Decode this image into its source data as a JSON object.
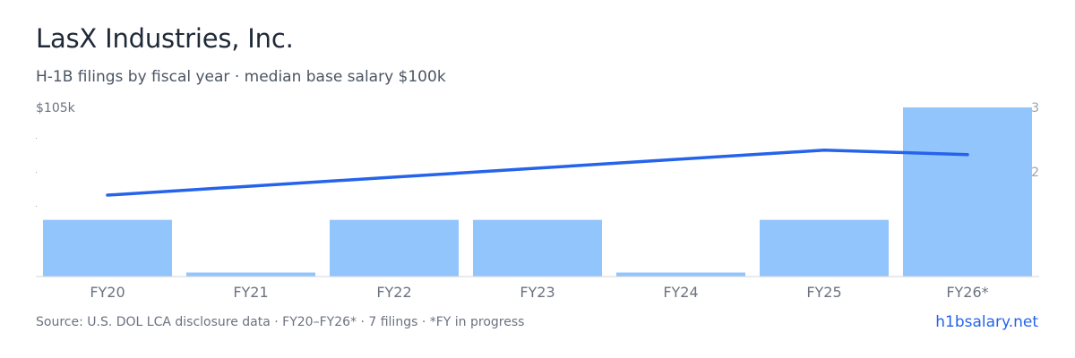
{
  "header": {
    "title": "LasX Industries, Inc.",
    "subtitle": "H-1B filings by fiscal year · median base salary $100k"
  },
  "footer": {
    "source": "Source: U.S. DOL LCA disclosure data · FY20–FY26* · 7 filings · *FY in progress",
    "brand": "h1bsalary.net"
  },
  "colors": {
    "bar": "#93c5fd",
    "line": "#2563eb",
    "axis_text": "#6b7280",
    "baseline": "#d1d5db"
  },
  "chart_data": {
    "type": "bar",
    "categories": [
      "FY20",
      "FY21",
      "FY22",
      "FY23",
      "FY24",
      "FY25",
      "FY26*"
    ],
    "series": [
      {
        "type": "bar",
        "axis": "right",
        "values": [
          1,
          0,
          1,
          1,
          0,
          1,
          3
        ]
      },
      {
        "type": "line",
        "axis": "left",
        "values": [
          97200,
          98000,
          98800,
          99600,
          100400,
          101200,
          100800
        ]
      }
    ],
    "left_axis": {
      "tick_label": "$105k",
      "ylim": [
        90000,
        105000
      ]
    },
    "right_axis": {
      "tick_labels": [
        "3",
        "2"
      ],
      "ylim": [
        0,
        3
      ]
    },
    "grid": false,
    "legend": "none"
  }
}
